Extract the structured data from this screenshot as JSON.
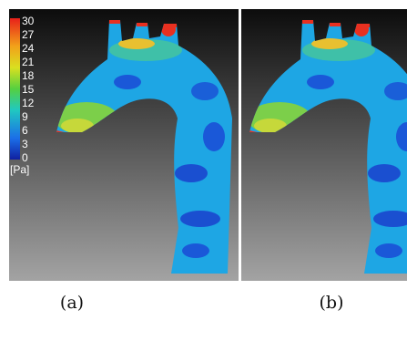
{
  "colorbar": {
    "ticks": [
      30,
      27,
      24,
      21,
      18,
      15,
      12,
      9,
      6,
      3,
      0
    ],
    "unit": "[Pa]"
  },
  "captions": [
    "(a)",
    "(b)"
  ]
}
